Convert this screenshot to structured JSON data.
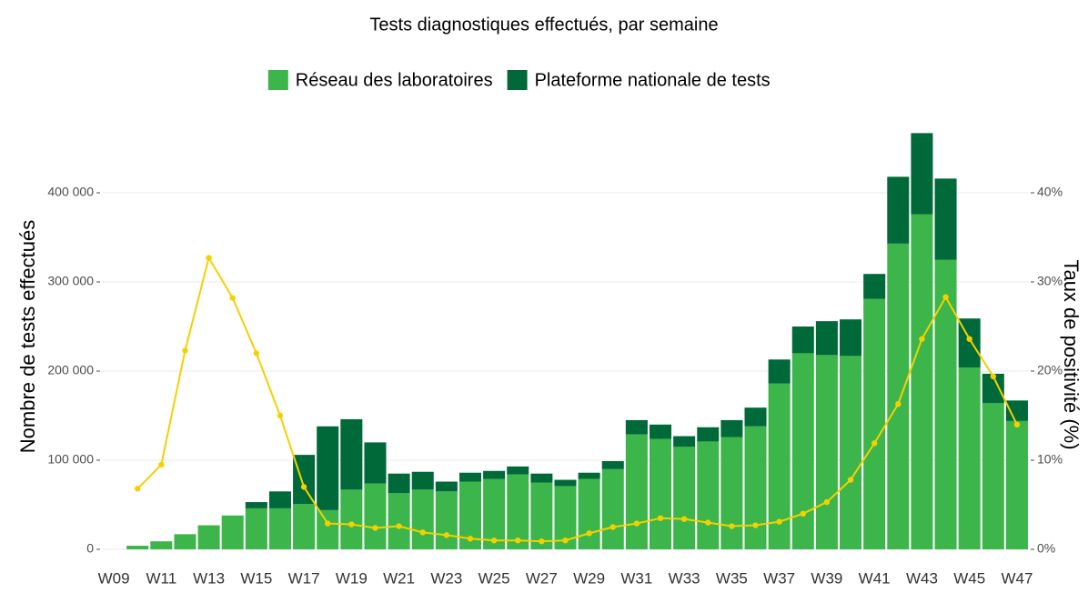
{
  "chart_data": {
    "type": "bar",
    "title": "Tests diagnostiques effectués, par semaine",
    "y_label": "Nombre de tests effectués",
    "y2_label": "Taux de positivité (%)",
    "categories": [
      "W09",
      null,
      "W11",
      null,
      "W13",
      null,
      "W15",
      null,
      "W17",
      null,
      "W19",
      null,
      "W21",
      null,
      "W23",
      null,
      "W25",
      null,
      "W27",
      null,
      "W29",
      null,
      "W31",
      null,
      "W33",
      null,
      "W35",
      null,
      "W37",
      null,
      "W39",
      null,
      "W41",
      null,
      "W43",
      null,
      "W45",
      null,
      "W47"
    ],
    "stacked": true,
    "series": [
      {
        "name": "Réseau des laboratoires",
        "color": "#3cb54a",
        "values": [
          0,
          4000,
          9000,
          17000,
          27000,
          38000,
          46000,
          46000,
          51000,
          44000,
          67000,
          74000,
          63000,
          67000,
          65000,
          76000,
          79000,
          84000,
          75000,
          71000,
          79000,
          90000,
          129000,
          124000,
          115000,
          121000,
          126000,
          138000,
          186000,
          220000,
          218000,
          217000,
          281000,
          343000,
          376000,
          325000,
          204000,
          164000,
          144000
        ]
      },
      {
        "name": "Plateforme nationale de tests",
        "color": "#00693a",
        "values": [
          0,
          0,
          0,
          0,
          0,
          0,
          7000,
          19000,
          55000,
          94000,
          79000,
          46000,
          22000,
          20000,
          11000,
          10000,
          9000,
          9000,
          10000,
          7000,
          7000,
          9000,
          16000,
          16000,
          12000,
          16000,
          19000,
          21000,
          27000,
          30000,
          38000,
          41000,
          28000,
          75000,
          91000,
          91000,
          55000,
          33000,
          23000
        ]
      },
      {
        "type": "line",
        "axis": "y2",
        "color": "#f5d000",
        "values": [
          null,
          6.8,
          9.5,
          22.3,
          32.7,
          28.2,
          22.0,
          15.0,
          7.0,
          2.9,
          2.8,
          2.4,
          2.6,
          1.9,
          1.6,
          1.2,
          1.0,
          1.0,
          0.9,
          1.0,
          1.8,
          2.5,
          2.9,
          3.5,
          3.4,
          3.0,
          2.6,
          2.7,
          3.1,
          4.0,
          5.3,
          7.8,
          11.9,
          16.3,
          23.6,
          28.3,
          23.6,
          19.4,
          14.0
        ]
      }
    ],
    "ylim": [
      0,
      475000
    ],
    "yticks": [
      0,
      {
        "value": 100000,
        "label": "100 000"
      },
      {
        "value": 200000,
        "label": "200 000"
      },
      {
        "value": 300000,
        "label": "300 000"
      },
      {
        "value": 400000,
        "label": "400 000"
      }
    ],
    "y2lim": [
      0,
      47.5
    ],
    "y2ticks": [
      {
        "value": 0,
        "label": "0%"
      },
      {
        "value": 10,
        "label": "10%"
      },
      {
        "value": 20,
        "label": "20%"
      },
      {
        "value": 30,
        "label": "30%"
      },
      {
        "value": 40,
        "label": "40%"
      }
    ],
    "grid": true,
    "legend": "top"
  }
}
